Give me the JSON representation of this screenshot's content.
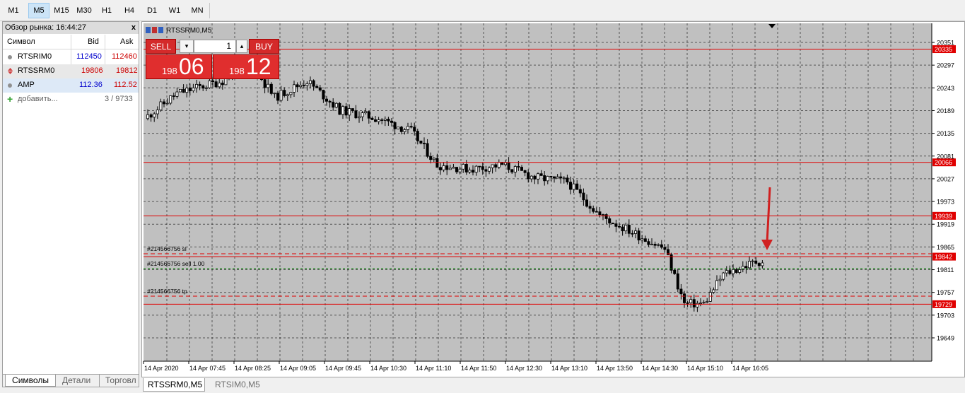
{
  "toolbar": {
    "timeframes": [
      "M1",
      "M5",
      "M15",
      "M30",
      "H1",
      "H4",
      "D1",
      "W1",
      "MN"
    ],
    "active": "M5"
  },
  "market_watch": {
    "title": "Обзор рынка: 16:44:27",
    "close": "x",
    "headers": {
      "symbol": "Символ",
      "bid": "Bid",
      "ask": "Ask"
    },
    "rows": [
      {
        "symbol": "RTSRIM0",
        "bid": "112450",
        "ask": "112460",
        "bid_color": "#0000cc",
        "ask_color": "#cc0000"
      },
      {
        "symbol": "RTSSRM0",
        "bid": "19806",
        "ask": "19812",
        "bid_color": "#cc0000",
        "ask_color": "#cc0000"
      },
      {
        "symbol": "AMP",
        "bid": "112.36",
        "ask": "112.52",
        "bid_color": "#0000cc",
        "ask_color": "#cc0000"
      }
    ],
    "add_label": "добавить...",
    "count": "3 / 9733",
    "tabs": [
      "Символы",
      "Детали",
      "Торговл"
    ]
  },
  "chart": {
    "title": "RTSSRM0,M5",
    "one_click": {
      "sell": "SELL",
      "buy": "BUY",
      "volume": "1",
      "sell_small": "198",
      "sell_big": "06",
      "buy_small": "198",
      "buy_big": "12"
    },
    "order_labels": [
      "#214566756 sl",
      "#214566756 sell 1.00",
      "#214566756 tp"
    ],
    "price_ticks": [
      "20351",
      "20297",
      "20243",
      "20189",
      "20135",
      "20081",
      "20027",
      "19973",
      "19919",
      "19865",
      "19811",
      "19757",
      "19703",
      "19649"
    ],
    "level_labels": [
      "20335",
      "20066",
      "19939",
      "19842",
      "19729"
    ],
    "time_labels": [
      "14 Apr 2020",
      "14 Apr 07:45",
      "14 Apr 08:25",
      "14 Apr 09:05",
      "14 Apr 09:45",
      "14 Apr 10:30",
      "14 Apr 11:10",
      "14 Apr 11:50",
      "14 Apr 12:30",
      "14 Apr 13:10",
      "14 Apr 13:50",
      "14 Apr 14:30",
      "14 Apr 15:10",
      "14 Apr 16:05"
    ],
    "level_color": "#e00000",
    "bg_color": "#c0c0c0"
  },
  "bottom_tabs": [
    "RTSSRM0,M5",
    "RTSIM0,M5"
  ]
}
